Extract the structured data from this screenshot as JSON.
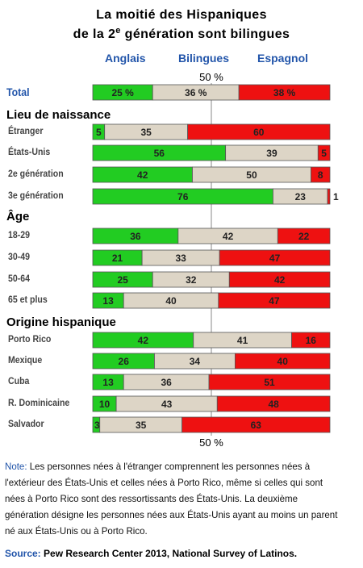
{
  "title_line1": "La moitié des Hispaniques",
  "title_line2_pre": "de la 2",
  "title_line2_sup": "e",
  "title_line2_post": " génération sont bilingues",
  "legend": {
    "anglais": "Anglais",
    "bilingues": "Bilingues",
    "espagnol": "Espagnol"
  },
  "midline_label_top": "50 %",
  "midline_label_bottom": "50 %",
  "colors": {
    "anglais": "#22cc22",
    "bilingues": "#ddd5c6",
    "espagnol": "#ee1111",
    "accent": "#2255aa"
  },
  "sections": {
    "lieu": "Lieu de naissance",
    "age": "Âge",
    "origine": "Origine hispanique"
  },
  "chart_data": {
    "type": "bar",
    "stacked": true,
    "orientation": "horizontal",
    "xlim": [
      0,
      100
    ],
    "title": "La moitié des Hispaniques de la 2e génération sont bilingues",
    "series": [
      {
        "name": "Anglais",
        "color": "#22cc22"
      },
      {
        "name": "Bilingues",
        "color": "#ddd5c6"
      },
      {
        "name": "Espagnol",
        "color": "#ee1111"
      }
    ],
    "rows": [
      {
        "label": "Total",
        "group": "total",
        "values": [
          25,
          36,
          38
        ],
        "labels": [
          "25 %",
          "36 %",
          "38 %"
        ]
      },
      {
        "label": "Étranger",
        "group": "lieu",
        "values": [
          5,
          35,
          60
        ],
        "labels": [
          "5",
          "35",
          "60"
        ]
      },
      {
        "label": "États-Unis",
        "group": "lieu",
        "values": [
          56,
          39,
          5
        ],
        "labels": [
          "56",
          "39",
          "5"
        ]
      },
      {
        "label": "2e génération",
        "group": "lieu",
        "values": [
          42,
          50,
          8
        ],
        "labels": [
          "42",
          "50",
          "8"
        ]
      },
      {
        "label": "3e génération",
        "group": "lieu",
        "values": [
          76,
          23,
          1
        ],
        "labels": [
          "76",
          "23",
          "1"
        ]
      },
      {
        "label": "18-29",
        "group": "age",
        "values": [
          36,
          42,
          22
        ],
        "labels": [
          "36",
          "42",
          "22"
        ]
      },
      {
        "label": "30-49",
        "group": "age",
        "values": [
          21,
          33,
          47
        ],
        "labels": [
          "21",
          "33",
          "47"
        ]
      },
      {
        "label": "50-64",
        "group": "age",
        "values": [
          25,
          32,
          42
        ],
        "labels": [
          "25",
          "32",
          "42"
        ]
      },
      {
        "label": "65 et plus",
        "group": "age",
        "values": [
          13,
          40,
          47
        ],
        "labels": [
          "13",
          "40",
          "47"
        ]
      },
      {
        "label": "Porto Rico",
        "group": "origine",
        "values": [
          42,
          41,
          16
        ],
        "labels": [
          "42",
          "41",
          "16"
        ]
      },
      {
        "label": "Mexique",
        "group": "origine",
        "values": [
          26,
          34,
          40
        ],
        "labels": [
          "26",
          "34",
          "40"
        ]
      },
      {
        "label": "Cuba",
        "group": "origine",
        "values": [
          13,
          36,
          51
        ],
        "labels": [
          "13",
          "36",
          "51"
        ]
      },
      {
        "label": "R. Dominicaine",
        "group": "origine",
        "values": [
          10,
          43,
          48
        ],
        "labels": [
          "10",
          "43",
          "48"
        ]
      },
      {
        "label": "Salvador",
        "group": "origine",
        "values": [
          3,
          35,
          63
        ],
        "labels": [
          "3",
          "35",
          "63"
        ]
      }
    ]
  },
  "note": {
    "label": "Note:",
    "text": " Les personnes nées à l'étranger comprennent les personnes nées à l'extérieur des États-Unis et celles nées à Porto Rico, même si celles qui sont nées à Porto Rico sont des ressortissants des États-Unis. La deuxième génération désigne les personnes nées aux États-Unis ayant au moins un parent né aux États-Unis ou à Porto Rico."
  },
  "source": {
    "label": "Source:",
    "text": " Pew Research Center 2013, National Survey of Latinos."
  }
}
